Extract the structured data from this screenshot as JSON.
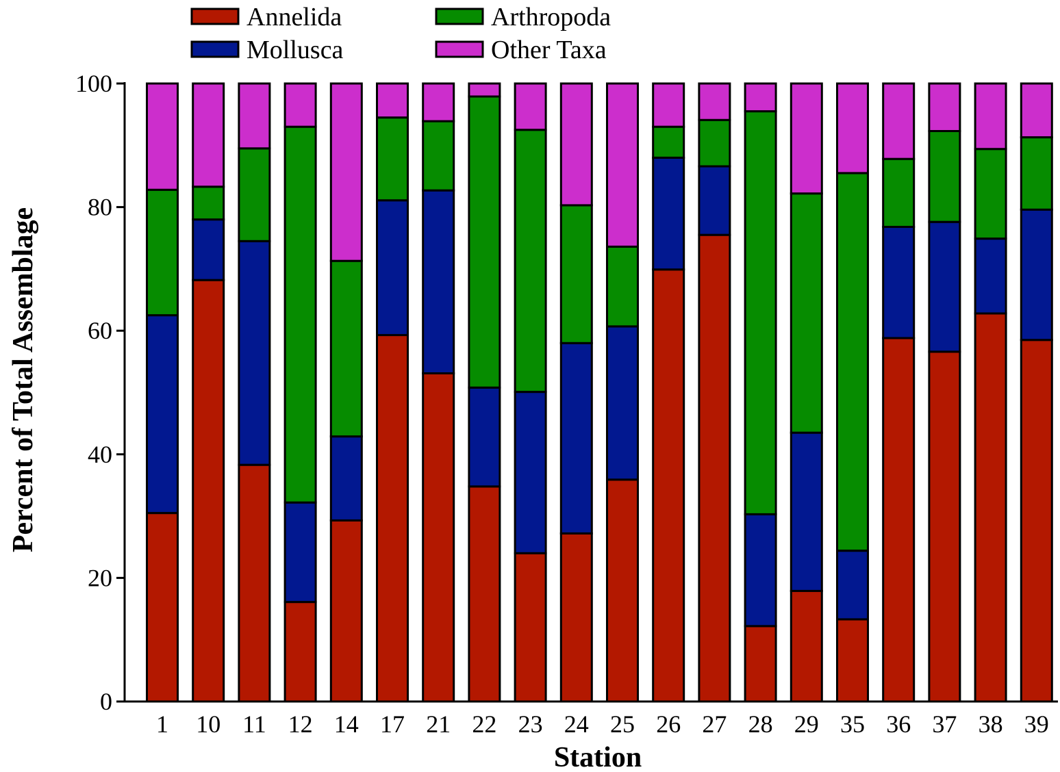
{
  "chart_data": {
    "type": "bar",
    "stacked": true,
    "xlabel": "Station",
    "ylabel": "Percent of Total Assemblage",
    "ylim": [
      0,
      100
    ],
    "yticks": [
      0,
      20,
      40,
      60,
      80,
      100
    ],
    "grid": false,
    "legend_position": "top-left",
    "categories": [
      "1",
      "10",
      "11",
      "12",
      "14",
      "17",
      "21",
      "22",
      "23",
      "24",
      "25",
      "26",
      "27",
      "28",
      "29",
      "35",
      "36",
      "37",
      "38",
      "39"
    ],
    "series": [
      {
        "name": "Annelida",
        "color": "#b31800",
        "values": [
          30.5,
          68.2,
          38.3,
          16.1,
          29.3,
          59.3,
          53.1,
          34.8,
          24.0,
          27.2,
          35.9,
          69.9,
          75.5,
          12.2,
          17.9,
          13.3,
          58.8,
          56.6,
          62.8,
          58.5
        ]
      },
      {
        "name": "Mollusca",
        "color": "#021890",
        "values": [
          32.0,
          9.8,
          36.2,
          16.1,
          13.6,
          21.8,
          29.6,
          16.0,
          26.1,
          30.8,
          24.8,
          18.1,
          11.1,
          18.1,
          25.6,
          11.1,
          18.0,
          21.0,
          12.1,
          21.1
        ]
      },
      {
        "name": "Arthropoda",
        "color": "#068c00",
        "values": [
          20.3,
          5.3,
          15.0,
          60.8,
          28.4,
          13.4,
          11.2,
          47.1,
          42.4,
          22.3,
          12.9,
          5.0,
          7.5,
          65.2,
          38.7,
          61.1,
          11.0,
          14.7,
          14.5,
          11.7
        ]
      },
      {
        "name": "Other Taxa",
        "color": "#cc2ecc",
        "values": [
          17.2,
          16.7,
          10.5,
          7.0,
          28.7,
          5.5,
          6.1,
          2.1,
          7.5,
          19.7,
          26.4,
          7.0,
          5.9,
          4.5,
          17.8,
          14.5,
          12.2,
          7.7,
          10.6,
          8.7
        ]
      }
    ]
  }
}
